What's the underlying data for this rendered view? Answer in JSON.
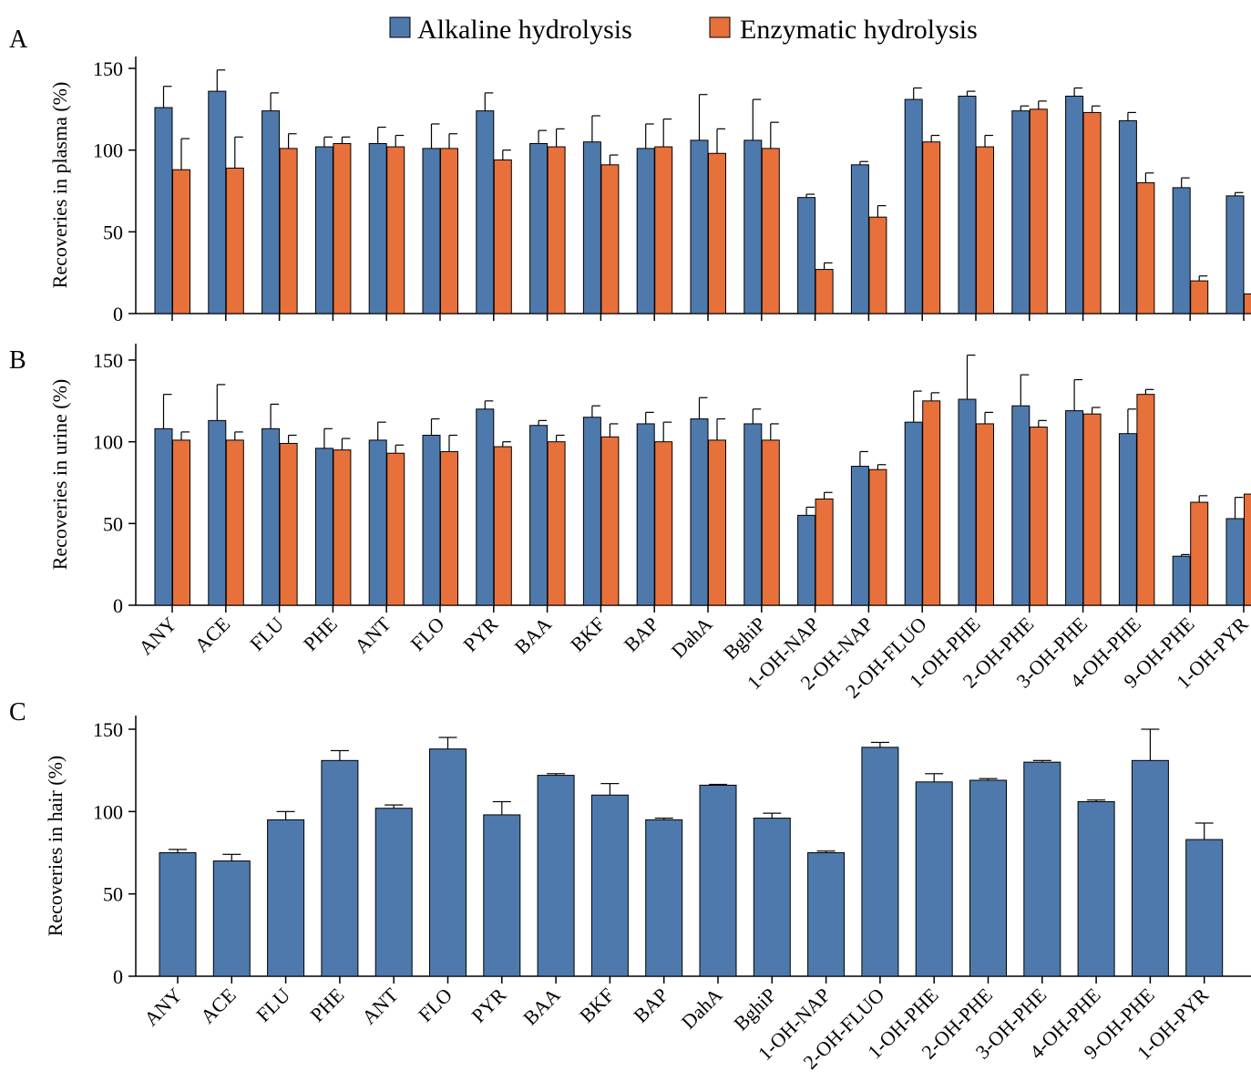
{
  "colors": {
    "alkaline": "#4e79ac",
    "enzymatic": "#e8703a",
    "axis": "#000000"
  },
  "legend": [
    {
      "name": "Alkaline hydrolysis",
      "color_key": "alkaline"
    },
    {
      "name": "Enzymatic hydrolysis",
      "color_key": "enzymatic"
    }
  ],
  "chart_data": [
    {
      "panel": "A",
      "type": "bar",
      "ylabel": "Recoveries in plasma (%)",
      "ylim": [
        0,
        150
      ],
      "yticks": [
        0,
        50,
        100,
        150
      ],
      "show_category_labels": false,
      "categories": [
        "ANY",
        "ACE",
        "FLU",
        "PHE",
        "ANT",
        "FLO",
        "PYR",
        "BAA",
        "BKF",
        "BAP",
        "DahA",
        "BghiP",
        "1-OH-NAP",
        "2-OH-NAP",
        "2-OH-FLUO",
        "1-OH-PHE",
        "2-OH-PHE",
        "3-OH-PHE",
        "4-OH-PHE",
        "9-OH-PHE",
        "1-OH-PYR"
      ],
      "series": [
        {
          "name": "Alkaline hydrolysis",
          "color_key": "alkaline",
          "values": [
            126,
            136,
            124,
            102,
            104,
            101,
            124,
            104,
            105,
            101,
            106,
            106,
            71,
            91,
            131,
            133,
            124,
            133,
            118,
            77,
            72
          ],
          "errors": [
            13,
            13,
            11,
            6,
            10,
            15,
            11,
            8,
            16,
            15,
            28,
            25,
            2,
            2,
            7,
            3,
            3,
            5,
            5,
            6,
            2
          ]
        },
        {
          "name": "Enzymatic hydrolysis",
          "color_key": "enzymatic",
          "values": [
            88,
            89,
            101,
            104,
            102,
            101,
            94,
            102,
            91,
            102,
            98,
            101,
            27,
            59,
            105,
            102,
            125,
            123,
            80,
            20,
            12
          ],
          "errors": [
            19,
            19,
            9,
            4,
            7,
            9,
            6,
            11,
            6,
            17,
            15,
            16,
            4,
            7,
            4,
            7,
            5,
            4,
            6,
            3,
            2
          ]
        }
      ]
    },
    {
      "panel": "B",
      "type": "bar",
      "ylabel": "Recoveries in urine (%)",
      "ylim": [
        0,
        160
      ],
      "yticks": [
        0,
        50,
        100,
        150
      ],
      "show_category_labels": true,
      "categories": [
        "ANY",
        "ACE",
        "FLU",
        "PHE",
        "ANT",
        "FLO",
        "PYR",
        "BAA",
        "BKF",
        "BAP",
        "DahA",
        "BghiP",
        "1-OH-NAP",
        "2-OH-NAP",
        "2-OH-FLUO",
        "1-OH-PHE",
        "2-OH-PHE",
        "3-OH-PHE",
        "4-OH-PHE",
        "9-OH-PHE",
        "1-OH-PYR"
      ],
      "series": [
        {
          "name": "Alkaline hydrolysis",
          "color_key": "alkaline",
          "values": [
            108,
            113,
            108,
            96,
            101,
            104,
            120,
            110,
            115,
            111,
            114,
            111,
            55,
            85,
            112,
            126,
            122,
            119,
            105,
            30,
            53
          ],
          "errors": [
            21,
            22,
            15,
            12,
            11,
            10,
            5,
            3,
            7,
            7,
            13,
            9,
            5,
            9,
            19,
            27,
            19,
            19,
            15,
            1,
            13
          ]
        },
        {
          "name": "Enzymatic hydrolysis",
          "color_key": "enzymatic",
          "values": [
            101,
            101,
            99,
            95,
            93,
            94,
            97,
            100,
            103,
            100,
            101,
            101,
            65,
            83,
            125,
            111,
            109,
            117,
            129,
            63,
            68
          ],
          "errors": [
            5,
            5,
            5,
            7,
            5,
            10,
            3,
            4,
            8,
            12,
            13,
            10,
            4,
            3,
            5,
            7,
            4,
            4,
            3,
            4,
            5
          ]
        }
      ]
    },
    {
      "panel": "C",
      "type": "bar",
      "ylabel": "Recoveries in hair (%)",
      "ylim": [
        0,
        150
      ],
      "yticks": [
        0,
        50,
        100,
        150
      ],
      "show_category_labels": true,
      "categories": [
        "ANY",
        "ACE",
        "FLU",
        "PHE",
        "ANT",
        "FLO",
        "PYR",
        "BAA",
        "BKF",
        "BAP",
        "DahA",
        "BghiP",
        "1-OH-NAP",
        "2-OH-FLUO",
        "1-OH-PHE",
        "2-OH-PHE",
        "3-OH-PHE",
        "4-OH-PHE",
        "9-OH-PHE",
        "1-OH-PYR"
      ],
      "series": [
        {
          "color_key": "alkaline",
          "values": [
            75,
            70,
            95,
            131,
            102,
            138,
            98,
            122,
            110,
            95,
            116,
            96,
            75,
            139,
            118,
            119,
            130,
            106,
            131,
            83
          ],
          "errors": [
            2,
            4,
            5,
            6,
            2,
            7,
            8,
            1,
            7,
            1,
            0.5,
            3,
            1,
            3,
            5,
            1,
            1,
            1,
            19,
            10
          ]
        }
      ]
    }
  ]
}
